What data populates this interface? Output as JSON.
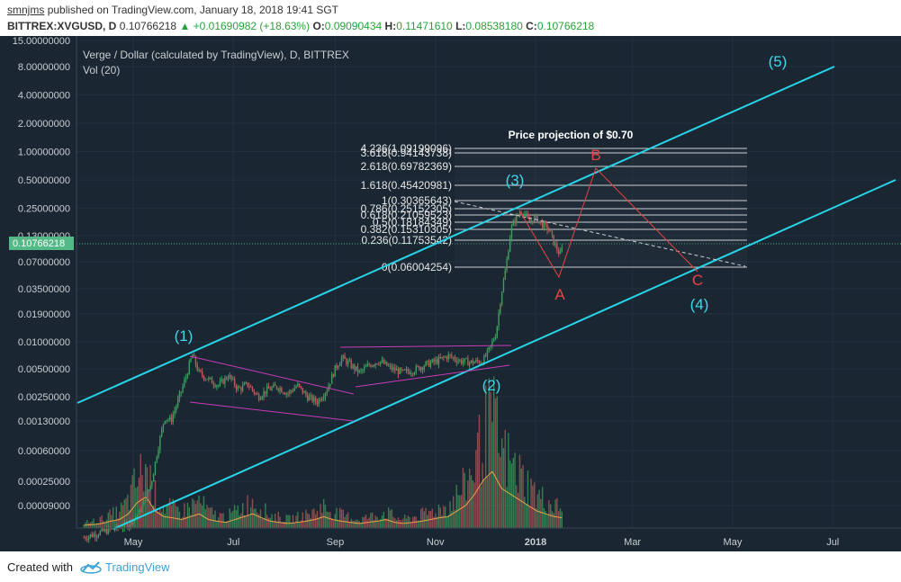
{
  "header": {
    "author": "smnjms",
    "published_text": "published on TradingView.com, January 18, 2018 19:41 SGT",
    "symbol": "BITTREX:XVGUSD, D",
    "last": "0.10766218",
    "change": "▲ +0.01690982 (+18.63%)",
    "o_label": "O:",
    "o_value": "0.09090434",
    "h_label": "H:",
    "h_value": "0.11471610",
    "l_label": "L:",
    "l_value": "0.08538180",
    "c_label": "C:",
    "c_value": "0.10766218"
  },
  "footer": {
    "created_with": "Created with",
    "brand": "TradingView"
  },
  "colors": {
    "background": "#1a2733",
    "channel": "#27d4e8",
    "wave_labels": "#3fd6e8",
    "abc": "#e84343",
    "wedge": "#c93bb8",
    "fib": "#c9cdd1",
    "up_candle": "#3f9c5a",
    "down_candle": "#b75a5a",
    "volume_ma": "#e5a54a",
    "price_marker": "#53b987"
  },
  "chart_data": {
    "type": "candlestick",
    "title": "Verge / Dollar (calculated by TradingView), D, BITTREX",
    "volume_label": "Vol (20)",
    "xlabel": "",
    "ylabel": "",
    "y_scale": "log",
    "y_ticks": [
      "15.00000000",
      "8.00000000",
      "4.00000000",
      "2.00000000",
      "1.00000000",
      "0.50000000",
      "0.25000000",
      "0.13000000",
      "0.07000000",
      "0.03500000",
      "0.01900000",
      "0.01000000",
      "0.00500000",
      "0.00250000",
      "0.00130000",
      "0.00060000",
      "0.00025000",
      "0.00009000"
    ],
    "x_ticks": [
      "May",
      "Jul",
      "Sep",
      "Nov",
      "2018",
      "Mar",
      "May",
      "Jul"
    ],
    "current_price_label": "0.10766218",
    "projection_title": "Price projection of $0.70",
    "fib_levels": [
      {
        "label": "4.236(1.09199096)",
        "value": 1.09199096
      },
      {
        "label": "3.618(0.94143738)",
        "value": 0.94143738
      },
      {
        "label": "2.618(0.69782369)",
        "value": 0.69782369
      },
      {
        "label": "1.618(0.45420981)",
        "value": 0.45420981
      },
      {
        "label": "1(0.30365643)",
        "value": 0.30365643
      },
      {
        "label": "0.786(0.25152305)",
        "value": 0.25152305
      },
      {
        "label": "0.618(0.21059523)",
        "value": 0.21059523
      },
      {
        "label": "0.5(0.18184349)",
        "value": 0.18184349
      },
      {
        "label": "0.382(0.15310305)",
        "value": 0.15310305
      },
      {
        "label": "0.236(0.11753542)",
        "value": 0.11753542
      },
      {
        "label": "0(0.06004254)",
        "value": 0.06004254
      }
    ],
    "wave_labels": [
      "(1)",
      "(2)",
      "(3)",
      "(4)",
      "(5)"
    ],
    "abc_labels": [
      "A",
      "B",
      "C"
    ],
    "price_path": [
      [
        "2017-04-01",
        8e-05
      ],
      [
        "2017-04-10",
        9e-05
      ],
      [
        "2017-04-20",
        0.0001
      ],
      [
        "2017-04-28",
        0.00011
      ],
      [
        "2017-05-05",
        0.00015
      ],
      [
        "2017-05-12",
        0.0003
      ],
      [
        "2017-05-16",
        0.0007
      ],
      [
        "2017-05-20",
        0.0015
      ],
      [
        "2017-05-24",
        0.0014
      ],
      [
        "2017-05-28",
        0.0022
      ],
      [
        "2017-06-02",
        0.004
      ],
      [
        "2017-06-06",
        0.007
      ],
      [
        "2017-06-10",
        0.0045
      ],
      [
        "2017-06-16",
        0.0038
      ],
      [
        "2017-06-22",
        0.0033
      ],
      [
        "2017-06-28",
        0.0042
      ],
      [
        "2017-07-04",
        0.003
      ],
      [
        "2017-07-10",
        0.0034
      ],
      [
        "2017-07-16",
        0.0025
      ],
      [
        "2017-07-22",
        0.003
      ],
      [
        "2017-07-28",
        0.0032
      ],
      [
        "2017-08-03",
        0.0027
      ],
      [
        "2017-08-09",
        0.0033
      ],
      [
        "2017-08-15",
        0.0025
      ],
      [
        "2017-08-21",
        0.0022
      ],
      [
        "2017-08-27",
        0.003
      ],
      [
        "2017-09-01",
        0.005
      ],
      [
        "2017-09-05",
        0.0065
      ],
      [
        "2017-09-10",
        0.0055
      ],
      [
        "2017-09-16",
        0.0045
      ],
      [
        "2017-09-22",
        0.0055
      ],
      [
        "2017-09-28",
        0.006
      ],
      [
        "2017-10-05",
        0.005
      ],
      [
        "2017-10-12",
        0.0045
      ],
      [
        "2017-10-19",
        0.0048
      ],
      [
        "2017-10-26",
        0.0055
      ],
      [
        "2017-11-02",
        0.006
      ],
      [
        "2017-11-09",
        0.0068
      ],
      [
        "2017-11-16",
        0.006
      ],
      [
        "2017-11-23",
        0.0058
      ],
      [
        "2017-11-30",
        0.006
      ],
      [
        "2017-12-04",
        0.008
      ],
      [
        "2017-12-08",
        0.012
      ],
      [
        "2017-12-11",
        0.03
      ],
      [
        "2017-12-14",
        0.06
      ],
      [
        "2017-12-17",
        0.15
      ],
      [
        "2017-12-20",
        0.2
      ],
      [
        "2017-12-24",
        0.24
      ],
      [
        "2017-12-28",
        0.18
      ],
      [
        "2018-01-01",
        0.2
      ],
      [
        "2018-01-05",
        0.17
      ],
      [
        "2018-01-09",
        0.15
      ],
      [
        "2018-01-13",
        0.1
      ],
      [
        "2018-01-16",
        0.08
      ],
      [
        "2018-01-18",
        0.10766218
      ]
    ],
    "volume_relative": [
      0.05,
      0.06,
      0.08,
      0.12,
      0.15,
      0.25,
      0.45,
      0.55,
      0.3,
      0.2,
      0.18,
      0.15,
      0.2,
      0.25,
      0.15,
      0.12,
      0.1,
      0.15,
      0.2,
      0.25,
      0.18,
      0.12,
      0.1,
      0.08,
      0.1,
      0.12,
      0.15,
      0.2,
      0.15,
      0.12,
      0.1,
      0.08,
      0.1,
      0.12,
      0.15,
      0.1,
      0.08,
      0.1,
      0.12,
      0.15,
      0.18,
      0.2,
      0.3,
      0.4,
      0.6,
      0.85,
      1.0,
      0.7,
      0.6,
      0.5,
      0.4,
      0.3,
      0.25,
      0.2,
      0.18
    ]
  }
}
